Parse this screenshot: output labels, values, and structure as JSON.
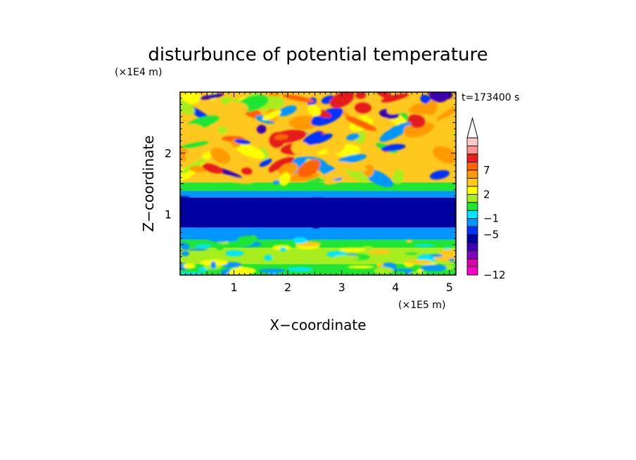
{
  "chart_data": {
    "type": "heatmap",
    "title": "disturbunce of potential temperature",
    "xlabel": "X−coordinate",
    "ylabel": "Z−coordinate",
    "x_unit": "(×1E5 m)",
    "y_unit": "(×1E4 m)",
    "time_label": "t=173400 s",
    "xlim": [
      0,
      5.12
    ],
    "ylim": [
      0,
      3
    ],
    "x_ticks": [
      1,
      2,
      3,
      4,
      5
    ],
    "y_ticks": [
      1,
      2
    ],
    "x_tick_labels": [
      "1",
      "2",
      "3",
      "4",
      "5"
    ],
    "y_tick_labels": [
      "1",
      "2"
    ],
    "colorbar": {
      "levels": [
        -12,
        -11,
        -9,
        -7,
        -5,
        -3,
        -1,
        0,
        1,
        2,
        4,
        5,
        7,
        8,
        9,
        10
      ],
      "labeled_values": [
        7,
        2,
        -1,
        -5,
        -12
      ],
      "labels": [
        "7",
        "2",
        "−1",
        "−5",
        "−12"
      ],
      "colors": [
        "#ff00c8",
        "#d800a8",
        "#8200c0",
        "#3c00b4",
        "#0000a0",
        "#0032ff",
        "#0096ff",
        "#00e6ff",
        "#1ee632",
        "#a8ee1e",
        "#ffff00",
        "#ffc81e",
        "#ff9b00",
        "#ff6400",
        "#e61e1e",
        "#ff9696",
        "#ffc8c8"
      ],
      "extend": "max"
    },
    "field_bands": [
      {
        "z_range": [
          0,
          0.18
        ],
        "value": 0.5
      },
      {
        "z_range": [
          0.18,
          0.45
        ],
        "value": 1.5
      },
      {
        "z_range": [
          0.45,
          0.58
        ],
        "value": 0.5
      },
      {
        "z_range": [
          0.58,
          0.78
        ],
        "value": -2
      },
      {
        "z_range": [
          0.78,
          1.27
        ],
        "value": -6
      },
      {
        "z_range": [
          1.27,
          1.38
        ],
        "value": -2
      },
      {
        "z_range": [
          1.38,
          1.52
        ],
        "value": 0.5
      },
      {
        "z_range": [
          1.52,
          3.0
        ],
        "value": 4
      }
    ]
  }
}
